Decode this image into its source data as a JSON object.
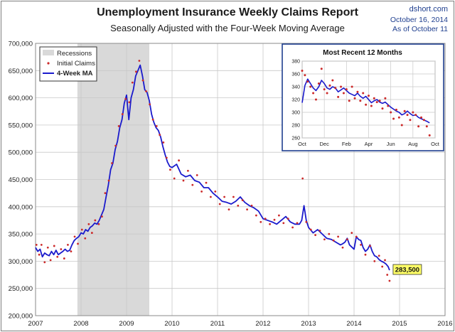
{
  "header": {
    "title": "Unemployment Insurance Weekly Claims Report",
    "subtitle": "Seasonally Adjusted with the Four-Week Moving Average",
    "source": "dshort.com",
    "date_line": "October 16, 2014",
    "asof_line": "As of October 11"
  },
  "colors": {
    "ma": "#1a1acc",
    "claims": "#cc2a2a",
    "recession": "#d9d9d9",
    "grid": "#c8c8c8",
    "callout_bg": "#ffff66"
  },
  "chart_data": [
    {
      "type": "line",
      "xlim": [
        2007,
        2016
      ],
      "ylim": [
        200000,
        700000
      ],
      "x_tick_labels": [
        "2007",
        "2008",
        "2009",
        "2010",
        "2011",
        "2012",
        "2013",
        "2014",
        "2015",
        "2016"
      ],
      "y_tick_labels": [
        "200,000",
        "250,000",
        "300,000",
        "350,000",
        "400,000",
        "450,000",
        "500,000",
        "550,000",
        "600,000",
        "650,000",
        "700,000"
      ],
      "grid": true,
      "legend_position": "top-left",
      "legend": {
        "recessions": "Recessions",
        "claims": "Initial Claims",
        "ma": "4-Week MA"
      },
      "recession": [
        2007.92,
        2009.5
      ],
      "callout": {
        "label": "283,500",
        "x": 2014.78,
        "y": 283500
      },
      "series": [
        {
          "name": "4-Week MA",
          "x": [
            2007.0,
            2007.05,
            2007.1,
            2007.15,
            2007.2,
            2007.25,
            2007.3,
            2007.35,
            2007.4,
            2007.45,
            2007.5,
            2007.55,
            2007.6,
            2007.65,
            2007.7,
            2007.75,
            2007.8,
            2007.85,
            2007.9,
            2007.95,
            2008.0,
            2008.05,
            2008.1,
            2008.15,
            2008.2,
            2008.25,
            2008.3,
            2008.35,
            2008.4,
            2008.45,
            2008.5,
            2008.55,
            2008.6,
            2008.65,
            2008.7,
            2008.75,
            2008.8,
            2008.85,
            2008.9,
            2008.95,
            2009.0,
            2009.05,
            2009.1,
            2009.15,
            2009.2,
            2009.25,
            2009.3,
            2009.35,
            2009.4,
            2009.45,
            2009.5,
            2009.55,
            2009.6,
            2009.65,
            2009.7,
            2009.75,
            2009.8,
            2009.85,
            2009.9,
            2009.95,
            2010.0,
            2010.1,
            2010.2,
            2010.3,
            2010.4,
            2010.5,
            2010.6,
            2010.7,
            2010.8,
            2010.9,
            2011.0,
            2011.1,
            2011.2,
            2011.3,
            2011.4,
            2011.5,
            2011.6,
            2011.7,
            2011.8,
            2011.9,
            2012.0,
            2012.1,
            2012.2,
            2012.3,
            2012.4,
            2012.5,
            2012.6,
            2012.7,
            2012.8,
            2012.85,
            2012.9,
            2012.95,
            2013.0,
            2013.1,
            2013.2,
            2013.3,
            2013.4,
            2013.5,
            2013.6,
            2013.7,
            2013.75,
            2013.8,
            2013.85,
            2013.9,
            2014.0,
            2014.05,
            2014.1,
            2014.15,
            2014.2,
            2014.25,
            2014.3,
            2014.35,
            2014.4,
            2014.45,
            2014.5,
            2014.55,
            2014.6,
            2014.65,
            2014.7,
            2014.75,
            2014.78
          ],
          "values": [
            325000,
            318000,
            322000,
            308000,
            315000,
            312000,
            310000,
            318000,
            312000,
            320000,
            312000,
            315000,
            318000,
            322000,
            318000,
            320000,
            330000,
            338000,
            342000,
            345000,
            352000,
            350000,
            358000,
            355000,
            362000,
            365000,
            370000,
            368000,
            375000,
            385000,
            395000,
            418000,
            440000,
            468000,
            480000,
            505000,
            520000,
            545000,
            560000,
            590000,
            605000,
            560000,
            600000,
            615000,
            640000,
            650000,
            660000,
            640000,
            615000,
            610000,
            595000,
            570000,
            555000,
            545000,
            540000,
            528000,
            510000,
            495000,
            482000,
            474000,
            472000,
            478000,
            460000,
            455000,
            458000,
            448000,
            445000,
            435000,
            435000,
            425000,
            418000,
            410000,
            408000,
            405000,
            410000,
            418000,
            408000,
            402000,
            398000,
            392000,
            378000,
            375000,
            372000,
            368000,
            375000,
            382000,
            372000,
            368000,
            368000,
            375000,
            402000,
            375000,
            362000,
            352000,
            358000,
            350000,
            342000,
            340000,
            335000,
            330000,
            332000,
            335000,
            342000,
            330000,
            322000,
            345000,
            340000,
            338000,
            325000,
            318000,
            322000,
            330000,
            318000,
            310000,
            308000,
            303000,
            300000,
            298000,
            295000,
            290000,
            283500
          ]
        },
        {
          "name": "Initial Claims",
          "x": [
            2007.02,
            2007.08,
            2007.13,
            2007.2,
            2007.27,
            2007.33,
            2007.41,
            2007.48,
            2007.56,
            2007.63,
            2007.71,
            2007.78,
            2007.86,
            2007.93,
            2008.02,
            2008.09,
            2008.17,
            2008.24,
            2008.31,
            2008.39,
            2008.46,
            2008.53,
            2008.61,
            2008.68,
            2008.76,
            2008.83,
            2008.91,
            2008.98,
            2009.06,
            2009.13,
            2009.21,
            2009.28,
            2009.36,
            2009.43,
            2009.51,
            2009.58,
            2009.66,
            2009.73,
            2009.81,
            2009.88,
            2009.96,
            2010.05,
            2010.15,
            2010.25,
            2010.35,
            2010.45,
            2010.55,
            2010.65,
            2010.75,
            2010.85,
            2010.95,
            2011.05,
            2011.15,
            2011.25,
            2011.35,
            2011.45,
            2011.55,
            2011.65,
            2011.75,
            2011.85,
            2011.95,
            2012.05,
            2012.15,
            2012.25,
            2012.35,
            2012.45,
            2012.55,
            2012.65,
            2012.75,
            2012.87,
            2012.95,
            2013.05,
            2013.15,
            2013.25,
            2013.35,
            2013.45,
            2013.55,
            2013.65,
            2013.75,
            2013.85,
            2013.95,
            2014.05,
            2014.15,
            2014.25,
            2014.35,
            2014.45,
            2014.55,
            2014.62,
            2014.68,
            2014.73,
            2014.78
          ],
          "values": [
            330000,
            312000,
            330000,
            298000,
            325000,
            302000,
            328000,
            308000,
            322000,
            305000,
            330000,
            318000,
            345000,
            332000,
            358000,
            342000,
            368000,
            352000,
            375000,
            368000,
            382000,
            425000,
            448000,
            480000,
            512000,
            548000,
            570000,
            598000,
            592000,
            628000,
            648000,
            668000,
            632000,
            612000,
            588000,
            560000,
            548000,
            532000,
            518000,
            490000,
            468000,
            452000,
            485000,
            448000,
            466000,
            440000,
            458000,
            428000,
            444000,
            418000,
            428000,
            405000,
            418000,
            395000,
            418000,
            402000,
            412000,
            395000,
            402000,
            384000,
            372000,
            378000,
            368000,
            376000,
            384000,
            370000,
            378000,
            362000,
            370000,
            452000,
            372000,
            358000,
            348000,
            356000,
            340000,
            350000,
            338000,
            345000,
            325000,
            340000,
            352000,
            345000,
            330000,
            312000,
            328000,
            300000,
            310000,
            290000,
            302000,
            275000,
            264000
          ]
        }
      ]
    },
    {
      "type": "line",
      "title": "Most Recent 12 Months",
      "xlim": [
        0,
        12
      ],
      "ylim": [
        260,
        380
      ],
      "x_tick_labels": [
        "Oct",
        "Dec",
        "Feb",
        "Apr",
        "Jun",
        "Aug",
        "Oct"
      ],
      "y_tick_labels": [
        "260",
        "280",
        "300",
        "320",
        "340",
        "360",
        "380"
      ],
      "grid": true,
      "series": [
        {
          "name": "4-Week MA",
          "x": [
            0,
            0.25,
            0.5,
            0.75,
            1.0,
            1.25,
            1.5,
            1.75,
            2.0,
            2.25,
            2.5,
            2.75,
            3.0,
            3.25,
            3.5,
            3.75,
            4.0,
            4.25,
            4.5,
            4.75,
            5.0,
            5.25,
            5.5,
            5.75,
            6.0,
            6.25,
            6.5,
            6.75,
            7.0,
            7.25,
            7.5,
            7.75,
            8.0,
            8.25,
            8.5,
            8.75,
            9.0,
            9.25,
            9.5,
            9.75,
            10.0,
            10.25,
            10.5,
            10.75,
            11.0,
            11.25,
            11.5
          ],
          "values": [
            315,
            342,
            352,
            345,
            338,
            334,
            340,
            350,
            345,
            338,
            336,
            340,
            338,
            332,
            335,
            338,
            334,
            330,
            328,
            326,
            330,
            325,
            322,
            325,
            320,
            315,
            318,
            320,
            316,
            314,
            316,
            312,
            308,
            305,
            302,
            300,
            296,
            298,
            302,
            298,
            295,
            296,
            292,
            290,
            288,
            286,
            283.5
          ]
        },
        {
          "name": "Initial Claims",
          "x": [
            0,
            0.25,
            0.5,
            0.75,
            1.0,
            1.25,
            1.5,
            1.75,
            2.0,
            2.25,
            2.5,
            2.75,
            3.0,
            3.25,
            3.5,
            3.75,
            4.0,
            4.25,
            4.5,
            4.75,
            5.0,
            5.25,
            5.5,
            5.75,
            6.0,
            6.25,
            6.5,
            6.75,
            7.0,
            7.25,
            7.5,
            7.75,
            8.0,
            8.25,
            8.5,
            8.75,
            9.0,
            9.25,
            9.5,
            9.75,
            10.0,
            10.25,
            10.5,
            10.75,
            11.0,
            11.25,
            11.5
          ],
          "values": [
            365,
            358,
            348,
            340,
            330,
            320,
            345,
            368,
            336,
            330,
            342,
            350,
            338,
            324,
            340,
            330,
            336,
            318,
            340,
            322,
            332,
            318,
            330,
            312,
            326,
            310,
            322,
            316,
            318,
            306,
            322,
            310,
            300,
            290,
            304,
            292,
            280,
            302,
            296,
            288,
            300,
            296,
            278,
            292,
            288,
            278,
            264
          ]
        }
      ]
    }
  ]
}
